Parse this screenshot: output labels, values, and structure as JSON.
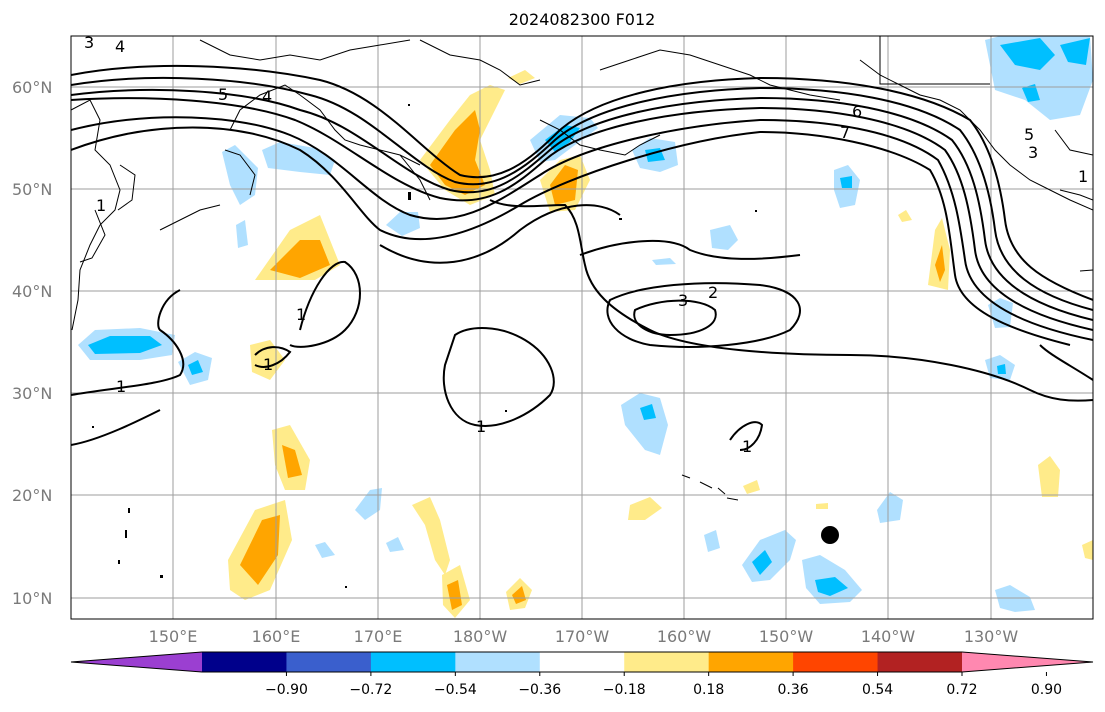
{
  "title": "2024082300 F012",
  "lat_labels": [
    "60°N",
    "50°N",
    "40°N",
    "30°N",
    "20°N",
    "10°N"
  ],
  "lon_labels": [
    "150°E",
    "160°E",
    "170°E",
    "180°W",
    "170°W",
    "160°W",
    "150°W",
    "140°W",
    "130°W"
  ],
  "colorbar": {
    "colors": [
      "#9b3fd1",
      "#00008b",
      "#3a5fcd",
      "#00bfff",
      "#b0e0ff",
      "#ffffff",
      "#ffeb8a",
      "#ffa500",
      "#ff4500",
      "#b22222",
      "#ff88b0"
    ],
    "ticks": [
      "−0.90",
      "−0.72",
      "−0.54",
      "−0.36",
      "−0.18",
      "0.18",
      "0.36",
      "0.54",
      "0.72",
      "0.90"
    ]
  },
  "contour_labels": [
    "3",
    "4",
    "5",
    "4",
    "6",
    "2",
    "3",
    "1",
    "1",
    "1",
    "1",
    "1",
    "1",
    "7",
    "5",
    "3",
    "1"
  ],
  "marker": "storm-center-dot"
}
